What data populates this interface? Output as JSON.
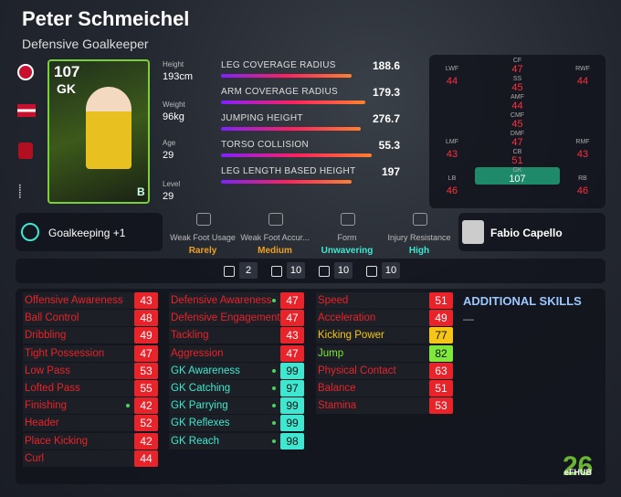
{
  "header": {
    "name": "Peter Schmeichel",
    "role": "Defensive Goalkeeper"
  },
  "card": {
    "rating": "107",
    "position": "GK",
    "grade": "B"
  },
  "bio": [
    {
      "label": "Height",
      "value": "193cm"
    },
    {
      "label": "Weight",
      "value": "96kg"
    },
    {
      "label": "Age",
      "value": "29"
    },
    {
      "label": "Level",
      "value": "29"
    }
  ],
  "special_stats": [
    {
      "name": "LEG COVERAGE RADIUS",
      "value": 188.6
    },
    {
      "name": "ARM COVERAGE RADIUS",
      "value": 179.3
    },
    {
      "name": "JUMPING HEIGHT",
      "value": 276.7
    },
    {
      "name": "TORSO COLLISION",
      "value": 55.3
    },
    {
      "name": "LEG LENGTH BASED HEIGHT",
      "value": 197
    }
  ],
  "positions": [
    {
      "label": "LWF",
      "value": 44
    },
    {
      "label": "CF",
      "value": 47
    },
    {
      "label": "RWF",
      "value": 44
    },
    {
      "label": "SS",
      "value": 45
    },
    {
      "label": "AMF",
      "value": 44
    },
    {
      "label": "LMF",
      "value": 43
    },
    {
      "label": "CMF",
      "value": 45
    },
    {
      "label": "RMF",
      "value": 43
    },
    {
      "label": "DMF",
      "value": 47
    },
    {
      "label": "LB",
      "value": 46
    },
    {
      "label": "CB",
      "value": 51
    },
    {
      "label": "RB",
      "value": 46
    },
    {
      "label": "GK",
      "value": 107
    }
  ],
  "skill": "Goalkeeping +1",
  "attributes": [
    {
      "label": "Weak Foot Usage",
      "value": "Rarely",
      "color": "#f0a020"
    },
    {
      "label": "Weak Foot Accur...",
      "value": "Medium",
      "color": "#f0a020"
    },
    {
      "label": "Form",
      "value": "Unwavering",
      "color": "#3ee8d0"
    },
    {
      "label": "Injury Resistance",
      "value": "High",
      "color": "#3ee8d0"
    }
  ],
  "coach": "Fabio Capello",
  "counters": [
    2,
    10,
    10,
    10
  ],
  "stats": [
    [
      {
        "name": "Offensive Awareness",
        "value": 43
      },
      {
        "name": "Ball Control",
        "value": 48
      },
      {
        "name": "Dribbling",
        "value": 49
      },
      {
        "name": "Tight Possession",
        "value": 47
      },
      {
        "name": "Low Pass",
        "value": 53
      },
      {
        "name": "Lofted Pass",
        "value": 55
      },
      {
        "name": "Finishing",
        "value": 42,
        "dot": true
      },
      {
        "name": "Header",
        "value": 52
      },
      {
        "name": "Place Kicking",
        "value": 42
      },
      {
        "name": "Curl",
        "value": 44
      }
    ],
    [
      {
        "name": "Defensive Awareness",
        "value": 47,
        "dot": true
      },
      {
        "name": "Defensive Engagement",
        "value": 47
      },
      {
        "name": "Tackling",
        "value": 43
      },
      {
        "name": "Aggression",
        "value": 47
      },
      {
        "name": "GK Awareness",
        "value": 99,
        "dot": true
      },
      {
        "name": "GK Catching",
        "value": 97,
        "dot": true
      },
      {
        "name": "GK Parrying",
        "value": 99,
        "dot": true
      },
      {
        "name": "GK Reflexes",
        "value": 99,
        "dot": true
      },
      {
        "name": "GK Reach",
        "value": 98,
        "dot": true
      }
    ],
    [
      {
        "name": "Speed",
        "value": 51
      },
      {
        "name": "Acceleration",
        "value": 49
      },
      {
        "name": "Kicking Power",
        "value": 77
      },
      {
        "name": "Jump",
        "value": 82
      },
      {
        "name": "Physical Contact",
        "value": 63
      },
      {
        "name": "Balance",
        "value": 51
      },
      {
        "name": "Stamina",
        "value": 53
      }
    ]
  ],
  "additional_skills": {
    "title": "ADDITIONAL SKILLS",
    "items": [
      "—"
    ]
  },
  "watermark": {
    "edition": "26",
    "brand": "eFHUB"
  }
}
